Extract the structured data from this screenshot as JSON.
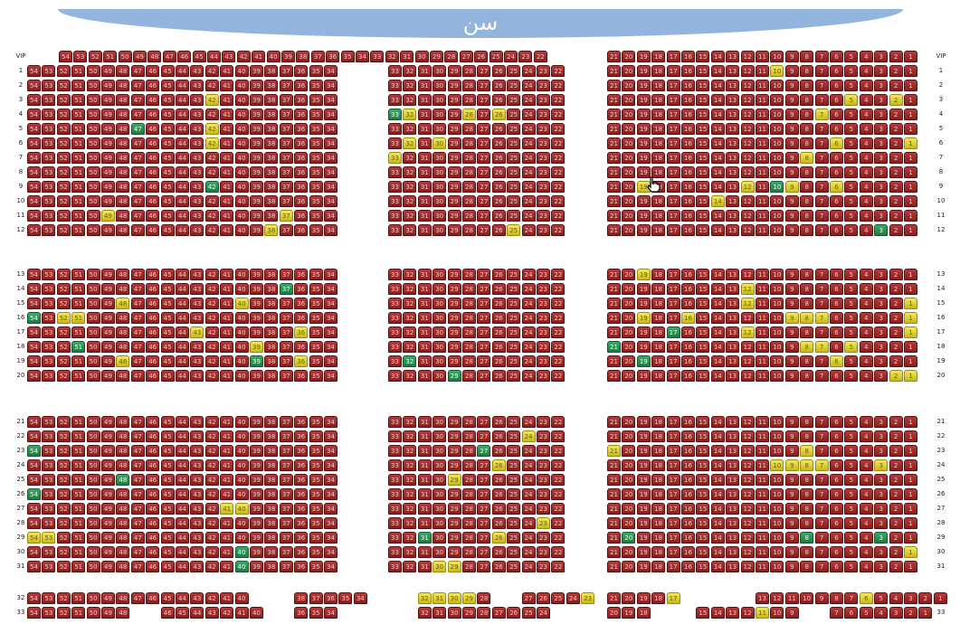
{
  "stage": {
    "label": "سن"
  },
  "colors": {
    "available": "#a52a2a",
    "reserved": "#e6d93a",
    "selected": "#2e9b5a",
    "stage": "#93b4dc"
  },
  "vip_label": "VIP",
  "legend_states": [
    "available",
    "reserved",
    "selected"
  ],
  "rows": [
    {
      "label": "VIP",
      "blocks": [
        [
          54,
          22
        ],
        null,
        [
          21,
          1
        ]
      ]
    },
    {
      "label": "1",
      "blocks": [
        [
          54,
          34
        ],
        [
          33,
          22
        ],
        [
          21,
          1
        ]
      ]
    },
    {
      "label": "2",
      "blocks": [
        [
          54,
          34
        ],
        [
          33,
          22
        ],
        [
          21,
          1
        ]
      ]
    },
    {
      "label": "3",
      "blocks": [
        [
          54,
          34
        ],
        [
          33,
          22
        ],
        [
          21,
          1
        ]
      ]
    },
    {
      "label": "4",
      "blocks": [
        [
          54,
          34
        ],
        [
          33,
          22
        ],
        [
          21,
          1
        ]
      ]
    },
    {
      "label": "5",
      "blocks": [
        [
          54,
          34
        ],
        [
          33,
          22
        ],
        [
          21,
          1
        ]
      ]
    },
    {
      "label": "6",
      "blocks": [
        [
          54,
          34
        ],
        [
          33,
          22
        ],
        [
          21,
          1
        ]
      ]
    },
    {
      "label": "7",
      "blocks": [
        [
          54,
          34
        ],
        [
          33,
          22
        ],
        [
          21,
          1
        ]
      ]
    },
    {
      "label": "8",
      "blocks": [
        [
          54,
          34
        ],
        [
          33,
          22
        ],
        [
          21,
          1
        ]
      ]
    },
    {
      "label": "9",
      "blocks": [
        [
          54,
          34
        ],
        [
          33,
          22
        ],
        [
          21,
          1
        ]
      ]
    },
    {
      "label": "10",
      "blocks": [
        [
          54,
          34
        ],
        [
          33,
          22
        ],
        [
          21,
          1
        ]
      ]
    },
    {
      "label": "11",
      "blocks": [
        [
          54,
          34
        ],
        [
          33,
          22
        ],
        [
          21,
          1
        ]
      ]
    },
    {
      "label": "12",
      "blocks": [
        [
          54,
          34
        ],
        [
          33,
          22
        ],
        [
          21,
          1
        ]
      ]
    },
    {
      "label": "13",
      "blocks": [
        [
          54,
          34
        ],
        [
          33,
          22
        ],
        [
          21,
          1
        ]
      ]
    },
    {
      "label": "14",
      "blocks": [
        [
          54,
          34
        ],
        [
          33,
          22
        ],
        [
          21,
          1
        ]
      ]
    },
    {
      "label": "15",
      "blocks": [
        [
          54,
          34
        ],
        [
          33,
          22
        ],
        [
          21,
          1
        ]
      ]
    },
    {
      "label": "16",
      "blocks": [
        [
          54,
          34
        ],
        [
          33,
          22
        ],
        [
          21,
          1
        ]
      ]
    },
    {
      "label": "17",
      "blocks": [
        [
          54,
          34
        ],
        [
          33,
          22
        ],
        [
          21,
          1
        ]
      ]
    },
    {
      "label": "18",
      "blocks": [
        [
          54,
          34
        ],
        [
          33,
          22
        ],
        [
          21,
          1
        ]
      ]
    },
    {
      "label": "19",
      "blocks": [
        [
          54,
          34
        ],
        [
          33,
          22
        ],
        [
          21,
          1
        ]
      ]
    },
    {
      "label": "20",
      "blocks": [
        [
          54,
          34
        ],
        [
          33,
          22
        ],
        [
          21,
          1
        ]
      ]
    },
    {
      "label": "21",
      "blocks": [
        [
          54,
          34
        ],
        [
          33,
          22
        ],
        [
          21,
          1
        ]
      ]
    },
    {
      "label": "22",
      "blocks": [
        [
          54,
          34
        ],
        [
          33,
          22
        ],
        [
          21,
          1
        ]
      ]
    },
    {
      "label": "23",
      "blocks": [
        [
          54,
          34
        ],
        [
          33,
          22
        ],
        [
          21,
          1
        ]
      ]
    },
    {
      "label": "24",
      "blocks": [
        [
          54,
          34
        ],
        [
          33,
          22
        ],
        [
          21,
          1
        ]
      ]
    },
    {
      "label": "25",
      "blocks": [
        [
          54,
          34
        ],
        [
          33,
          22
        ],
        [
          21,
          1
        ]
      ]
    },
    {
      "label": "26",
      "blocks": [
        [
          54,
          34
        ],
        [
          33,
          22
        ],
        [
          21,
          1
        ]
      ]
    },
    {
      "label": "27",
      "blocks": [
        [
          54,
          34
        ],
        [
          33,
          22
        ],
        [
          21,
          1
        ]
      ]
    },
    {
      "label": "28",
      "blocks": [
        [
          54,
          34
        ],
        [
          33,
          22
        ],
        [
          21,
          1
        ]
      ]
    },
    {
      "label": "29",
      "blocks": [
        [
          54,
          34
        ],
        [
          33,
          22
        ],
        [
          21,
          1
        ]
      ]
    },
    {
      "label": "30",
      "blocks": [
        [
          54,
          34
        ],
        [
          33,
          22
        ],
        [
          21,
          1
        ]
      ]
    },
    {
      "label": "31",
      "blocks": [
        [
          54,
          34
        ],
        [
          33,
          22
        ],
        [
          21,
          1
        ]
      ]
    },
    {
      "label": "32",
      "seats": [
        [
          54,
          53,
          52,
          51,
          50,
          49,
          48,
          47,
          46,
          45,
          44,
          43,
          42,
          41,
          40,
          null,
          null,
          null,
          38,
          37,
          36,
          35,
          34
        ],
        [
          null,
          null,
          32,
          31,
          30,
          29,
          28,
          null,
          null,
          27,
          26,
          25,
          24,
          23
        ],
        [
          21,
          20,
          19,
          18,
          17,
          null,
          null,
          null,
          null,
          null,
          13,
          12,
          11,
          10,
          9,
          8,
          7,
          6,
          5,
          4,
          3,
          2,
          1
        ]
      ]
    },
    {
      "label": "33",
      "seats": [
        [
          54,
          53,
          52,
          51,
          50,
          49,
          48,
          null,
          null,
          46,
          45,
          44,
          43,
          42,
          41,
          40,
          null,
          null,
          36,
          35,
          34
        ],
        [
          null,
          null,
          32,
          31,
          30,
          29,
          28,
          27,
          26,
          25,
          24
        ],
        [
          20,
          19,
          18,
          null,
          null,
          null,
          15,
          14,
          13,
          12,
          11,
          10,
          9,
          null,
          null,
          7,
          6,
          5,
          4,
          3,
          2,
          1
        ]
      ]
    }
  ],
  "status": [
    {
      "row": "1",
      "seat": 10,
      "s": "r"
    },
    {
      "row": "3",
      "seat": 42,
      "s": "r"
    },
    {
      "row": "3",
      "seat": 5,
      "s": "r"
    },
    {
      "row": "3",
      "seat": 2,
      "s": "r"
    },
    {
      "row": "4",
      "seat": 33,
      "s": "g"
    },
    {
      "row": "4",
      "seat": 32,
      "s": "r"
    },
    {
      "row": "4",
      "seat": 28,
      "s": "r"
    },
    {
      "row": "4",
      "seat": 26,
      "s": "r"
    },
    {
      "row": "4",
      "seat": 7,
      "s": "r"
    },
    {
      "row": "5",
      "seat": 47,
      "s": "g"
    },
    {
      "row": "5",
      "seat": 42,
      "s": "r"
    },
    {
      "row": "6",
      "seat": 42,
      "s": "r"
    },
    {
      "row": "6",
      "seat": 32,
      "s": "r"
    },
    {
      "row": "6",
      "seat": 30,
      "s": "r"
    },
    {
      "row": "6",
      "seat": 6,
      "s": "r"
    },
    {
      "row": "6",
      "seat": 1,
      "s": "r"
    },
    {
      "row": "7",
      "seat": 33,
      "s": "r"
    },
    {
      "row": "7",
      "seat": 8,
      "s": "r"
    },
    {
      "row": "9",
      "seat": 42,
      "s": "g"
    },
    {
      "row": "9",
      "seat": 19,
      "s": "r"
    },
    {
      "row": "9",
      "seat": 12,
      "s": "r"
    },
    {
      "row": "9",
      "seat": 10,
      "s": "g"
    },
    {
      "row": "9",
      "seat": 9,
      "s": "r"
    },
    {
      "row": "9",
      "seat": 6,
      "s": "r"
    },
    {
      "row": "10",
      "seat": 14,
      "s": "r"
    },
    {
      "row": "11",
      "seat": 49,
      "s": "r"
    },
    {
      "row": "11",
      "seat": 37,
      "s": "r"
    },
    {
      "row": "12",
      "seat": 38,
      "s": "r"
    },
    {
      "row": "12",
      "seat": 25,
      "s": "r"
    },
    {
      "row": "12",
      "seat": 3,
      "s": "g"
    },
    {
      "row": "13",
      "seat": 19,
      "s": "r"
    },
    {
      "row": "14",
      "seat": 37,
      "s": "g"
    },
    {
      "row": "14",
      "seat": 12,
      "s": "r"
    },
    {
      "row": "15",
      "seat": 48,
      "s": "r"
    },
    {
      "row": "15",
      "seat": 40,
      "s": "r"
    },
    {
      "row": "15",
      "seat": 12,
      "s": "r"
    },
    {
      "row": "15",
      "seat": 1,
      "s": "r"
    },
    {
      "row": "16",
      "seat": 54,
      "s": "g"
    },
    {
      "row": "16",
      "seat": 52,
      "s": "r"
    },
    {
      "row": "16",
      "seat": 51,
      "s": "r"
    },
    {
      "row": "16",
      "seat": 19,
      "s": "r"
    },
    {
      "row": "16",
      "seat": 16,
      "s": "r"
    },
    {
      "row": "16",
      "seat": 9,
      "s": "r"
    },
    {
      "row": "16",
      "seat": 8,
      "s": "r"
    },
    {
      "row": "16",
      "seat": 7,
      "s": "r"
    },
    {
      "row": "16",
      "seat": 1,
      "s": "r"
    },
    {
      "row": "17",
      "seat": 43,
      "s": "r"
    },
    {
      "row": "17",
      "seat": 36,
      "s": "r"
    },
    {
      "row": "17",
      "seat": 17,
      "s": "g"
    },
    {
      "row": "17",
      "seat": 12,
      "s": "r"
    },
    {
      "row": "17",
      "seat": 1,
      "s": "r"
    },
    {
      "row": "18",
      "seat": 51,
      "s": "g"
    },
    {
      "row": "18",
      "seat": 39,
      "s": "r"
    },
    {
      "row": "18",
      "seat": 21,
      "s": "g"
    },
    {
      "row": "18",
      "seat": 8,
      "s": "r"
    },
    {
      "row": "18",
      "seat": 7,
      "s": "r"
    },
    {
      "row": "18",
      "seat": 5,
      "s": "r"
    },
    {
      "row": "19",
      "seat": 48,
      "s": "r"
    },
    {
      "row": "19",
      "seat": 39,
      "s": "g"
    },
    {
      "row": "19",
      "seat": 36,
      "s": "r"
    },
    {
      "row": "19",
      "seat": 32,
      "s": "g"
    },
    {
      "row": "19",
      "seat": 19,
      "s": "g"
    },
    {
      "row": "19",
      "seat": 6,
      "s": "r"
    },
    {
      "row": "20",
      "seat": 29,
      "s": "g"
    },
    {
      "row": "20",
      "seat": 2,
      "s": "r"
    },
    {
      "row": "20",
      "seat": 1,
      "s": "r"
    },
    {
      "row": "22",
      "seat": 24,
      "s": "r"
    },
    {
      "row": "23",
      "seat": 54,
      "s": "g"
    },
    {
      "row": "23",
      "seat": 27,
      "s": "g"
    },
    {
      "row": "23",
      "seat": 21,
      "s": "r"
    },
    {
      "row": "23",
      "seat": 8,
      "s": "r"
    },
    {
      "row": "24",
      "seat": 26,
      "s": "r"
    },
    {
      "row": "24",
      "seat": 10,
      "s": "r"
    },
    {
      "row": "24",
      "seat": 9,
      "s": "r"
    },
    {
      "row": "24",
      "seat": 8,
      "s": "r"
    },
    {
      "row": "24",
      "seat": 7,
      "s": "r"
    },
    {
      "row": "24",
      "seat": 3,
      "s": "r"
    },
    {
      "row": "25",
      "seat": 48,
      "s": "g"
    },
    {
      "row": "25",
      "seat": 29,
      "s": "r"
    },
    {
      "row": "26",
      "seat": 54,
      "s": "g"
    },
    {
      "row": "27",
      "seat": 41,
      "s": "r"
    },
    {
      "row": "27",
      "seat": 40,
      "s": "r"
    },
    {
      "row": "28",
      "seat": 23,
      "s": "r"
    },
    {
      "row": "29",
      "seat": 54,
      "s": "r"
    },
    {
      "row": "29",
      "seat": 53,
      "s": "r"
    },
    {
      "row": "29",
      "seat": 31,
      "s": "g"
    },
    {
      "row": "29",
      "seat": 26,
      "s": "r"
    },
    {
      "row": "29",
      "seat": 20,
      "s": "g"
    },
    {
      "row": "29",
      "seat": 8,
      "s": "g"
    },
    {
      "row": "29",
      "seat": 3,
      "s": "g"
    },
    {
      "row": "30",
      "seat": 40,
      "s": "g"
    },
    {
      "row": "30",
      "seat": 1,
      "s": "r"
    },
    {
      "row": "31",
      "seat": 40,
      "s": "g"
    },
    {
      "row": "31",
      "seat": 30,
      "s": "r"
    },
    {
      "row": "31",
      "seat": 29,
      "s": "r"
    },
    {
      "row": "32",
      "seat": 32,
      "s": "r"
    },
    {
      "row": "32",
      "seat": 31,
      "s": "r"
    },
    {
      "row": "32",
      "seat": 30,
      "s": "r"
    },
    {
      "row": "32",
      "seat": 29,
      "s": "r"
    },
    {
      "row": "32",
      "seat": 23,
      "s": "r"
    },
    {
      "row": "32",
      "seat": 17,
      "s": "r"
    },
    {
      "row": "32",
      "seat": 6,
      "s": "r"
    },
    {
      "row": "33",
      "seat": 11,
      "s": "r"
    }
  ]
}
